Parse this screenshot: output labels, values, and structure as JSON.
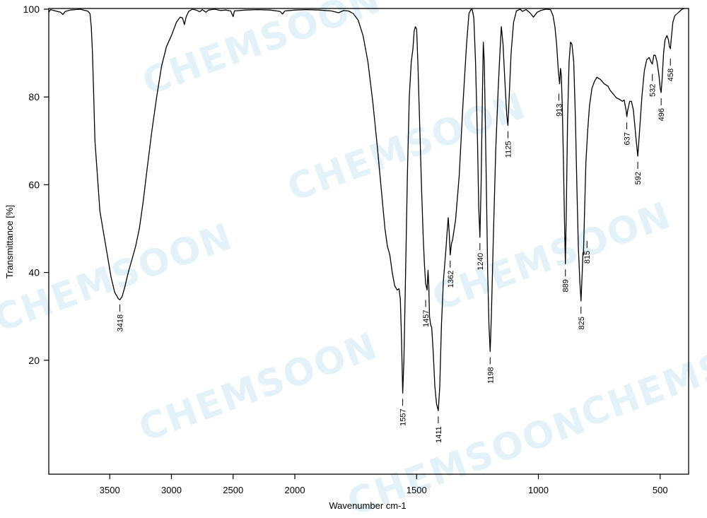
{
  "chart_data": {
    "type": "line",
    "title": "",
    "xlabel": "Wavenumber  cm-1",
    "ylabel": "Transmittance [%]",
    "xlim": [
      4050,
      400
    ],
    "ylim": [
      -6,
      100
    ],
    "x_ticks": [
      3500,
      3000,
      2500,
      2000,
      1500,
      1000,
      500
    ],
    "y_ticks": [
      20,
      40,
      60,
      80,
      100
    ],
    "x_scale_note": "x-axis compressed by half above 2000 cm-1",
    "grid": false,
    "legend": null,
    "watermark": "CHEMSOON",
    "peaks": [
      {
        "label": "3418",
        "x": 3418,
        "y": 34
      },
      {
        "label": "1557",
        "x": 1557,
        "y": 12.5
      },
      {
        "label": "1457",
        "x": 1457,
        "y": 36
      },
      {
        "label": "1411",
        "x": 1411,
        "y": 8.5
      },
      {
        "label": "1362",
        "x": 1362,
        "y": 44
      },
      {
        "label": "1240",
        "x": 1240,
        "y": 48
      },
      {
        "label": "1198",
        "x": 1198,
        "y": 22
      },
      {
        "label": "1125",
        "x": 1125,
        "y": 73.5
      },
      {
        "label": "913",
        "x": 913,
        "y": 83
      },
      {
        "label": "889",
        "x": 889,
        "y": 42
      },
      {
        "label": "825",
        "x": 825,
        "y": 33.5
      },
      {
        "label": "815",
        "x": 815,
        "y": 44
      },
      {
        "label": "637",
        "x": 637,
        "y": 75.5
      },
      {
        "label": "592",
        "x": 592,
        "y": 66.5
      },
      {
        "label": "532",
        "x": 532,
        "y": 87.5
      },
      {
        "label": "496",
        "x": 496,
        "y": 81
      },
      {
        "label": "458",
        "x": 458,
        "y": 91
      }
    ],
    "series": [
      {
        "name": "IR spectrum",
        "points": [
          [
            4050,
            99.3
          ],
          [
            3980,
            99.9
          ],
          [
            3940,
            99.6
          ],
          [
            3900,
            99.3
          ],
          [
            3880,
            98.8
          ],
          [
            3860,
            99.5
          ],
          [
            3820,
            99.8
          ],
          [
            3780,
            99.9
          ],
          [
            3740,
            100
          ],
          [
            3700,
            99.7
          ],
          [
            3680,
            99.6
          ],
          [
            3660,
            99
          ],
          [
            3650,
            96
          ],
          [
            3640,
            90
          ],
          [
            3630,
            80
          ],
          [
            3620,
            70
          ],
          [
            3600,
            62
          ],
          [
            3580,
            54
          ],
          [
            3550,
            49
          ],
          [
            3520,
            44
          ],
          [
            3490,
            39
          ],
          [
            3460,
            35.5
          ],
          [
            3430,
            34
          ],
          [
            3418,
            33.8
          ],
          [
            3400,
            34.5
          ],
          [
            3380,
            36.5
          ],
          [
            3350,
            40
          ],
          [
            3320,
            43
          ],
          [
            3290,
            46
          ],
          [
            3260,
            50
          ],
          [
            3230,
            56
          ],
          [
            3200,
            63
          ],
          [
            3160,
            72
          ],
          [
            3120,
            80
          ],
          [
            3080,
            87
          ],
          [
            3040,
            91.5
          ],
          [
            3000,
            94
          ],
          [
            2960,
            97
          ],
          [
            2930,
            98.2
          ],
          [
            2910,
            98
          ],
          [
            2895,
            96.5
          ],
          [
            2880,
            98.3
          ],
          [
            2860,
            99.5
          ],
          [
            2830,
            100
          ],
          [
            2800,
            99.8
          ],
          [
            2770,
            99.4
          ],
          [
            2750,
            99.9
          ],
          [
            2720,
            99.3
          ],
          [
            2700,
            99.8
          ],
          [
            2650,
            100
          ],
          [
            2600,
            99.7
          ],
          [
            2560,
            99.8
          ],
          [
            2520,
            99.6
          ],
          [
            2500,
            98.3
          ],
          [
            2490,
            99.6
          ],
          [
            2400,
            99.8
          ],
          [
            2300,
            99.9
          ],
          [
            2200,
            99.8
          ],
          [
            2120,
            99.5
          ],
          [
            2100,
            98.9
          ],
          [
            2080,
            99.6
          ],
          [
            2000,
            99.8
          ],
          [
            1950,
            99.9
          ],
          [
            1900,
            99.8
          ],
          [
            1850,
            99.6
          ],
          [
            1820,
            99.2
          ],
          [
            1800,
            99.7
          ],
          [
            1780,
            99.6
          ],
          [
            1760,
            99
          ],
          [
            1740,
            97.5
          ],
          [
            1720,
            94
          ],
          [
            1700,
            88
          ],
          [
            1680,
            79
          ],
          [
            1660,
            68
          ],
          [
            1640,
            56
          ],
          [
            1630,
            50
          ],
          [
            1620,
            46
          ],
          [
            1610,
            44
          ],
          [
            1600,
            40
          ],
          [
            1590,
            37
          ],
          [
            1580,
            36
          ],
          [
            1572,
            36.3
          ],
          [
            1567,
            34
          ],
          [
            1562,
            25
          ],
          [
            1557,
            12.5
          ],
          [
            1552,
            20
          ],
          [
            1545,
            40
          ],
          [
            1538,
            62
          ],
          [
            1530,
            80
          ],
          [
            1522,
            88
          ],
          [
            1515,
            91
          ],
          [
            1510,
            95
          ],
          [
            1505,
            96
          ],
          [
            1500,
            95.5
          ],
          [
            1495,
            88
          ],
          [
            1488,
            75
          ],
          [
            1480,
            60
          ],
          [
            1473,
            48
          ],
          [
            1468,
            42
          ],
          [
            1463,
            37.5
          ],
          [
            1457,
            36
          ],
          [
            1453,
            40.5
          ],
          [
            1450,
            37
          ],
          [
            1447,
            30
          ],
          [
            1442,
            28
          ],
          [
            1438,
            27.5
          ],
          [
            1432,
            22
          ],
          [
            1425,
            14
          ],
          [
            1418,
            10
          ],
          [
            1411,
            8.5
          ],
          [
            1405,
            14
          ],
          [
            1398,
            28
          ],
          [
            1390,
            38
          ],
          [
            1380,
            45
          ],
          [
            1375,
            49
          ],
          [
            1370,
            52.5
          ],
          [
            1366,
            49
          ],
          [
            1362,
            44
          ],
          [
            1357,
            46.5
          ],
          [
            1352,
            47.5
          ],
          [
            1340,
            52
          ],
          [
            1325,
            62
          ],
          [
            1310,
            78
          ],
          [
            1295,
            92
          ],
          [
            1285,
            99
          ],
          [
            1278,
            99.8
          ],
          [
            1272,
            100
          ],
          [
            1265,
            98
          ],
          [
            1258,
            88
          ],
          [
            1250,
            70
          ],
          [
            1245,
            55
          ],
          [
            1240,
            48
          ],
          [
            1235,
            60
          ],
          [
            1230,
            80
          ],
          [
            1226,
            92.5
          ],
          [
            1222,
            88
          ],
          [
            1215,
            65
          ],
          [
            1208,
            40
          ],
          [
            1203,
            28
          ],
          [
            1198,
            22
          ],
          [
            1193,
            30
          ],
          [
            1185,
            48
          ],
          [
            1175,
            68
          ],
          [
            1165,
            82
          ],
          [
            1158,
            90
          ],
          [
            1152,
            96
          ],
          [
            1145,
            92
          ],
          [
            1138,
            84
          ],
          [
            1130,
            76
          ],
          [
            1125,
            73.5
          ],
          [
            1120,
            80
          ],
          [
            1112,
            90
          ],
          [
            1102,
            97
          ],
          [
            1090,
            99.6
          ],
          [
            1075,
            100
          ],
          [
            1065,
            99.5
          ],
          [
            1050,
            99.9
          ],
          [
            1035,
            99.2
          ],
          [
            1020,
            98.2
          ],
          [
            1005,
            99.3
          ],
          [
            990,
            99.7
          ],
          [
            970,
            100
          ],
          [
            950,
            99.9
          ],
          [
            940,
            98.5
          ],
          [
            932,
            96
          ],
          [
            925,
            92
          ],
          [
            918,
            86
          ],
          [
            913,
            83
          ],
          [
            909,
            86.5
          ],
          [
            906,
            85
          ],
          [
            902,
            78
          ],
          [
            897,
            65
          ],
          [
            893,
            52
          ],
          [
            889,
            42
          ],
          [
            885,
            55
          ],
          [
            880,
            75
          ],
          [
            874,
            88
          ],
          [
            868,
            92.5
          ],
          [
            862,
            92
          ],
          [
            855,
            88
          ],
          [
            848,
            75
          ],
          [
            842,
            60
          ],
          [
            836,
            46
          ],
          [
            830,
            38
          ],
          [
            825,
            33.5
          ],
          [
            820,
            40
          ],
          [
            817,
            44.5
          ],
          [
            815,
            44
          ],
          [
            810,
            55
          ],
          [
            805,
            65
          ],
          [
            798,
            72
          ],
          [
            790,
            78
          ],
          [
            780,
            82
          ],
          [
            770,
            83.5
          ],
          [
            760,
            84.5
          ],
          [
            745,
            84
          ],
          [
            730,
            83
          ],
          [
            715,
            82.5
          ],
          [
            705,
            81.5
          ],
          [
            690,
            80.5
          ],
          [
            680,
            79.8
          ],
          [
            668,
            79.5
          ],
          [
            655,
            79
          ],
          [
            648,
            79.3
          ],
          [
            640,
            77
          ],
          [
            637,
            75.5
          ],
          [
            633,
            77
          ],
          [
            625,
            79
          ],
          [
            618,
            79
          ],
          [
            610,
            77
          ],
          [
            600,
            71
          ],
          [
            592,
            66.5
          ],
          [
            585,
            72
          ],
          [
            575,
            80
          ],
          [
            565,
            86
          ],
          [
            555,
            88.5
          ],
          [
            545,
            89
          ],
          [
            538,
            88
          ],
          [
            532,
            87.5
          ],
          [
            526,
            89.5
          ],
          [
            520,
            89.5
          ],
          [
            513,
            88
          ],
          [
            505,
            85
          ],
          [
            500,
            82
          ],
          [
            496,
            81
          ],
          [
            492,
            84
          ],
          [
            486,
            90
          ],
          [
            480,
            93
          ],
          [
            472,
            94
          ],
          [
            466,
            93
          ],
          [
            462,
            91.5
          ],
          [
            458,
            91
          ],
          [
            454,
            93.5
          ],
          [
            448,
            97
          ],
          [
            440,
            98.5
          ],
          [
            430,
            99
          ],
          [
            420,
            99.5
          ],
          [
            410,
            100
          ],
          [
            400,
            100.2
          ]
        ]
      }
    ]
  },
  "axes": {
    "y_tick_labels": [
      "100",
      "80",
      "60",
      "40",
      "20"
    ],
    "x_tick_labels": [
      "3500",
      "3000",
      "2500",
      "2000",
      "1500",
      "1000",
      "500"
    ],
    "xlabel": "Wavenumber  cm-1",
    "ylabel": "Transmittance [%]"
  },
  "colors": {
    "line": "#000000",
    "frame": "#000000",
    "watermark": "#e3f1f8",
    "background": "#ffffff"
  }
}
